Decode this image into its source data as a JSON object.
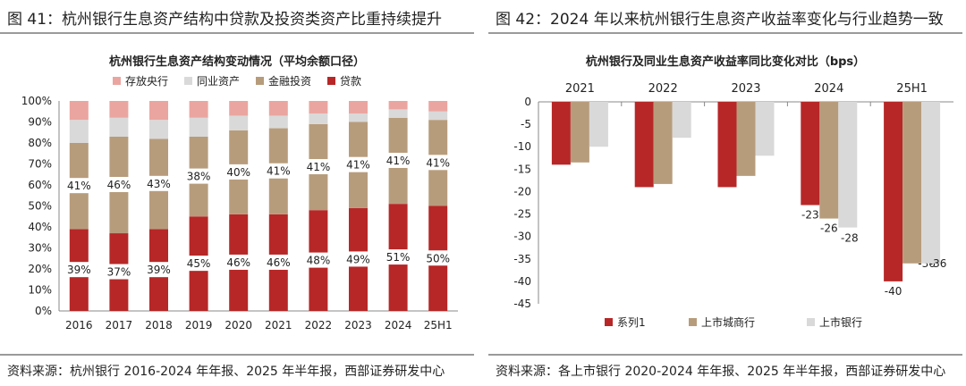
{
  "left": {
    "figure_title": "图 41：杭州银行生息资产结构中贷款及投资类资产比重持续提升",
    "source": "资料来源：杭州银行 2016-2024 年年报、2025 年半年报，西部证券研发中心",
    "chart_data": {
      "type": "bar",
      "stacked": true,
      "title": "杭州银行生息资产结构变动情况（平均余额口径）",
      "categories": [
        "2016",
        "2017",
        "2018",
        "2019",
        "2020",
        "2021",
        "2022",
        "2023",
        "2024",
        "25H1"
      ],
      "ylim": [
        0,
        100
      ],
      "yticks": [
        "0%",
        "10%",
        "20%",
        "30%",
        "40%",
        "50%",
        "60%",
        "70%",
        "80%",
        "90%",
        "100%"
      ],
      "legend_position": "top",
      "series": [
        {
          "name": "贷款",
          "color": "#B72727",
          "values": [
            39,
            37,
            39,
            45,
            46,
            46,
            48,
            49,
            51,
            50
          ],
          "labels": [
            "39%",
            "37%",
            "39%",
            "45%",
            "46%",
            "46%",
            "48%",
            "49%",
            "51%",
            "50%"
          ]
        },
        {
          "name": "金融投资",
          "color": "#B79C7C",
          "values": [
            41,
            46,
            43,
            38,
            40,
            41,
            41,
            41,
            41,
            41
          ],
          "labels": [
            "41%",
            "46%",
            "43%",
            "38%",
            "40%",
            "41%",
            "41%",
            "41%",
            "41%",
            "41%"
          ]
        },
        {
          "name": "同业资产",
          "color": "#D9D9D9",
          "values": [
            11,
            9,
            9,
            9,
            7,
            6,
            5,
            4,
            4,
            4
          ]
        },
        {
          "name": "存放央行",
          "color": "#EBA5A0",
          "values": [
            9,
            8,
            9,
            8,
            7,
            7,
            6,
            6,
            4,
            5
          ]
        }
      ],
      "legend_order": [
        "存放央行",
        "同业资产",
        "金融投资",
        "贷款"
      ]
    }
  },
  "right": {
    "figure_title": "图 42：2024 年以来杭州银行生息资产收益率变化与行业趋势一致",
    "source": "资料来源：各上市银行 2020-2024 年年报、2025 年半年报，西部证券研发中心",
    "chart_data": {
      "type": "bar",
      "title": "杭州银行及同业生息资产收益率同比变化对比（bps）",
      "categories": [
        "2021",
        "2022",
        "2023",
        "2024",
        "25H1"
      ],
      "ylim": [
        -45,
        0
      ],
      "yticks": [
        0,
        -5,
        -10,
        -15,
        -20,
        -25,
        -30,
        -35,
        -40,
        -45
      ],
      "legend_position": "bottom",
      "series": [
        {
          "name": "系列1",
          "color": "#B72727",
          "values": [
            -14,
            -19,
            -19,
            -23,
            -40
          ],
          "labels": [
            "",
            "",
            "",
            "-23",
            "-40"
          ]
        },
        {
          "name": "上市城商行",
          "color": "#B79C7C",
          "values": [
            -13.5,
            -18.3,
            -16.5,
            -26,
            -36
          ],
          "labels": [
            "",
            "",
            "",
            "-26",
            "-36"
          ]
        },
        {
          "name": "上市银行",
          "color": "#D9D9D9",
          "values": [
            -10,
            -8,
            -12,
            -28,
            -36
          ],
          "labels": [
            "",
            "",
            "",
            "-28",
            "-36"
          ]
        }
      ]
    }
  }
}
